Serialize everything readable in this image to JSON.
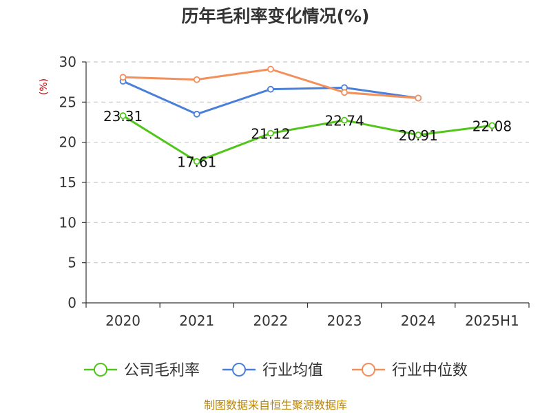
{
  "chart_data": {
    "type": "line",
    "title": "历年毛利率变化情况(%)",
    "ylabel": "(%)",
    "categories": [
      "2020",
      "2021",
      "2022",
      "2023",
      "2024",
      "2025H1"
    ],
    "ylim": [
      0,
      30
    ],
    "yticks": [
      0,
      5,
      10,
      15,
      20,
      25,
      30
    ],
    "grid": true,
    "legend_position": "bottom",
    "series": [
      {
        "name": "公司毛利率",
        "color": "#52c41a",
        "values": [
          23.31,
          17.61,
          21.12,
          22.74,
          20.91,
          22.08
        ],
        "labels": [
          "23.31",
          "17.61",
          "21.12",
          "22.74",
          "20.91",
          "22.08"
        ]
      },
      {
        "name": "行业均值",
        "color": "#4a7fd9",
        "values": [
          27.6,
          23.5,
          26.6,
          26.8,
          25.5,
          null
        ]
      },
      {
        "name": "行业中位数",
        "color": "#f28f5a",
        "values": [
          28.1,
          27.8,
          29.1,
          26.2,
          25.5,
          null
        ]
      }
    ]
  },
  "footer": {
    "source": "制图数据来自恒生聚源数据库"
  }
}
